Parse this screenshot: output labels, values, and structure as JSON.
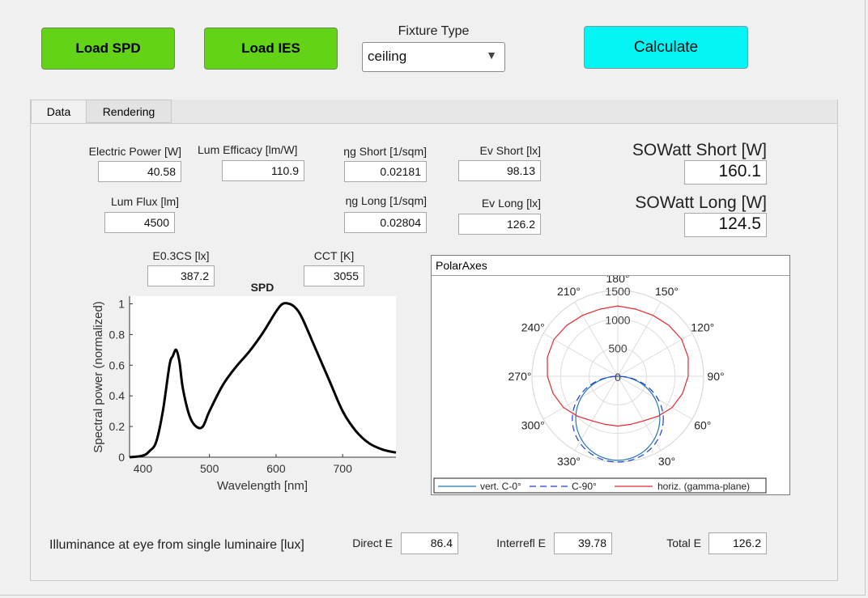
{
  "toolbar": {
    "load_spd": "Load SPD",
    "load_ies": "Load IES",
    "fixture_label": "Fixture Type",
    "fixture_value": "ceiling",
    "calculate": "Calculate"
  },
  "tabs": [
    {
      "label": "Data"
    },
    {
      "label": "Rendering"
    }
  ],
  "metrics": {
    "electric_power": {
      "label": "Electric Power [W]",
      "value": "40.58"
    },
    "lum_efficacy": {
      "label": "Lum Efficacy [lm/W]",
      "value": "110.9"
    },
    "eta_short": {
      "label": "ηg Short [1/sqm]",
      "value": "0.02181"
    },
    "ev_short": {
      "label": "Ev Short [lx]",
      "value": "98.13"
    },
    "sowatt_short": {
      "label": "SOWatt Short [W]",
      "value": "160.1"
    },
    "lum_flux": {
      "label": "Lum Flux [lm]",
      "value": "4500"
    },
    "eta_long": {
      "label": "ηg Long [1/sqm]",
      "value": "0.02804"
    },
    "ev_long": {
      "label": "Ev Long [lx]",
      "value": "126.2"
    },
    "sowatt_long": {
      "label": "SOWatt Long [W]",
      "value": "124.5"
    },
    "e03cs": {
      "label": "E0.3CS [lx]",
      "value": "387.2"
    },
    "cct": {
      "label": "CCT [K]",
      "value": "3055"
    }
  },
  "illuminance": {
    "label": "Illuminance at eye from single luminaire [lux]",
    "direct_label": "Direct E",
    "direct_value": "86.4",
    "interrefl_label": "Interrefl E",
    "interrefl_value": "39.78",
    "total_label": "Total E",
    "total_value": "126.2"
  },
  "polar": {
    "panel_title": "PolarAxes",
    "angle_labels": [
      "180°",
      "150°",
      "120°",
      "90°",
      "60°",
      "30°",
      "330°",
      "300°",
      "270°",
      "240°",
      "210°"
    ],
    "radial_ticks": [
      "0",
      "500",
      "1000",
      "1500"
    ],
    "r_max": 1500,
    "legend": [
      "vert. C-0°",
      "C-90°",
      "horiz. (gamma-plane)"
    ],
    "colors": {
      "c0": "#1f77b4",
      "c90": "#1f3fcf",
      "horiz": "#e8262b"
    }
  },
  "chart_data": {
    "type": "line",
    "title": "SPD",
    "xlabel": "Wavelength [nm]",
    "ylabel": "Spectral power (normalized)",
    "xlim": [
      380,
      780
    ],
    "ylim": [
      0,
      1.05
    ],
    "xticks": [
      "400",
      "500",
      "600",
      "700"
    ],
    "yticks": [
      "0",
      "0.2",
      "0.4",
      "0.6",
      "0.8",
      "1"
    ],
    "x": [
      380,
      400,
      410,
      420,
      430,
      440,
      445,
      450,
      455,
      460,
      470,
      480,
      490,
      500,
      520,
      540,
      560,
      580,
      600,
      610,
      620,
      630,
      640,
      660,
      680,
      700,
      720,
      740,
      760,
      780
    ],
    "y": [
      0.0,
      0.01,
      0.04,
      0.1,
      0.3,
      0.6,
      0.66,
      0.7,
      0.62,
      0.45,
      0.27,
      0.2,
      0.2,
      0.3,
      0.47,
      0.59,
      0.69,
      0.81,
      0.95,
      1.0,
      1.0,
      0.97,
      0.9,
      0.7,
      0.5,
      0.3,
      0.17,
      0.09,
      0.05,
      0.03
    ]
  }
}
